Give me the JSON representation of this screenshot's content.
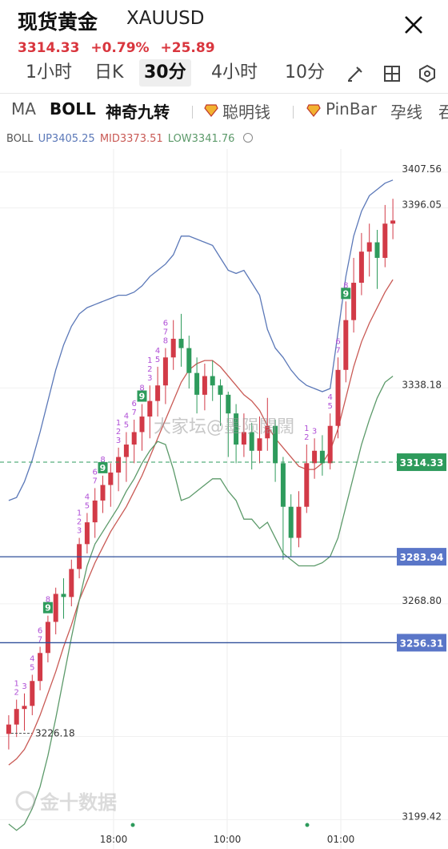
{
  "header": {
    "symbol_name": "现货黄金",
    "symbol_code": "XAUUSD",
    "price": "3314.33",
    "change_pct": "+0.79%",
    "change_abs": "+25.89"
  },
  "tabs": [
    "1小时",
    "日K",
    "30分",
    "4小时",
    "10分"
  ],
  "active_tab": "30分",
  "indicators": [
    "MA",
    "BOLL",
    "神奇九转",
    "聪明钱",
    "PinBar",
    "孕线",
    "吞"
  ],
  "boll_legend": {
    "prefix": "BOLL",
    "up": "UP3405.25",
    "mid": "MID3373.51",
    "low": "LOW3341.76",
    "up_color": "#5b78b8",
    "mid_color": "#c95a55",
    "low_color": "#5c9a6a"
  },
  "watermark": "大家坛@墨陨闊闊",
  "brand": "金十数据",
  "colors": {
    "up": "#d23a47",
    "down": "#2e9b5c",
    "nine_color": "#b04fd6",
    "current_tag": "#2e9b5c",
    "level_tag": "#5a76c8",
    "level_line": "#2f4f9a"
  },
  "chart_data": {
    "type": "candlestick",
    "y_range": [
      3190,
      3415
    ],
    "price_labels": [
      "3407.56",
      "3396.05",
      "3338.18",
      "3268.80",
      "3226.18",
      "3199.42"
    ],
    "current_price": "3314.33",
    "level_lines": [
      "3283.94",
      "3256.31"
    ],
    "x_labels": [
      "18:00",
      "10:00",
      "01:00"
    ],
    "series": [
      {
        "name": "UP",
        "values": [
          3302,
          3303,
          3308,
          3315,
          3324,
          3334,
          3344,
          3352,
          3358,
          3362,
          3364,
          3365,
          3366,
          3367,
          3368,
          3368,
          3369,
          3371,
          3374,
          3376,
          3378,
          3381,
          3387,
          3387,
          3386,
          3385,
          3384,
          3380,
          3376,
          3375,
          3376,
          3372,
          3368,
          3357,
          3351,
          3348,
          3344,
          3341,
          3339,
          3338,
          3337,
          3338,
          3356,
          3374,
          3387,
          3395,
          3400,
          3402,
          3404,
          3405
        ]
      },
      {
        "name": "MID",
        "values": [
          3217,
          3219,
          3222,
          3227,
          3233,
          3240,
          3247,
          3255,
          3262,
          3270,
          3276,
          3282,
          3287,
          3292,
          3296,
          3300,
          3305,
          3310,
          3316,
          3322,
          3328,
          3334,
          3340,
          3344,
          3346,
          3347,
          3347,
          3345,
          3342,
          3339,
          3336,
          3334,
          3331,
          3326,
          3322,
          3319,
          3316,
          3313,
          3312,
          3312,
          3314,
          3318,
          3325,
          3335,
          3345,
          3353,
          3359,
          3364,
          3369,
          3373
        ]
      },
      {
        "name": "LOW",
        "values": [
          3198,
          3196,
          3198,
          3203,
          3210,
          3220,
          3232,
          3245,
          3258,
          3270,
          3281,
          3288,
          3292,
          3296,
          3300,
          3305,
          3309,
          3314,
          3318,
          3321,
          3320,
          3312,
          3302,
          3303,
          3305,
          3307,
          3309,
          3309,
          3305,
          3302,
          3296,
          3296,
          3293,
          3295,
          3290,
          3285,
          3283,
          3281,
          3281,
          3281,
          3282,
          3284,
          3290,
          3300,
          3310,
          3320,
          3328,
          3335,
          3340,
          3342
        ]
      }
    ],
    "candles": [
      [
        3227,
        3230,
        3222,
        3233
      ],
      [
        3230,
        3235,
        3226,
        3238
      ],
      [
        3235,
        3236,
        3228,
        3240
      ],
      [
        3236,
        3244,
        3233,
        3246
      ],
      [
        3244,
        3253,
        3241,
        3255
      ],
      [
        3253,
        3263,
        3250,
        3265
      ],
      [
        3263,
        3272,
        3259,
        3274
      ],
      [
        3272,
        3271,
        3264,
        3277
      ],
      [
        3271,
        3280,
        3268,
        3283
      ],
      [
        3280,
        3288,
        3277,
        3290
      ],
      [
        3288,
        3295,
        3285,
        3298
      ],
      [
        3295,
        3302,
        3290,
        3306
      ],
      [
        3302,
        3307,
        3298,
        3310
      ],
      [
        3307,
        3311,
        3300,
        3314
      ],
      [
        3311,
        3316,
        3305,
        3319
      ],
      [
        3316,
        3320,
        3308,
        3324
      ],
      [
        3320,
        3324,
        3314,
        3328
      ],
      [
        3324,
        3329,
        3318,
        3333
      ],
      [
        3329,
        3334,
        3322,
        3339
      ],
      [
        3334,
        3339,
        3329,
        3345
      ],
      [
        3339,
        3348,
        3333,
        3351
      ],
      [
        3348,
        3354,
        3344,
        3360
      ],
      [
        3354,
        3351,
        3345,
        3362
      ],
      [
        3351,
        3343,
        3338,
        3355
      ],
      [
        3343,
        3336,
        3330,
        3348
      ],
      [
        3336,
        3342,
        3331,
        3346
      ],
      [
        3342,
        3339,
        3334,
        3347
      ],
      [
        3339,
        3336,
        3326,
        3341
      ],
      [
        3336,
        3330,
        3316,
        3337
      ],
      [
        3330,
        3320,
        3314,
        3333
      ],
      [
        3320,
        3324,
        3316,
        3330
      ],
      [
        3324,
        3318,
        3312,
        3327
      ],
      [
        3318,
        3322,
        3314,
        3329
      ],
      [
        3322,
        3326,
        3318,
        3335
      ],
      [
        3326,
        3314,
        3308,
        3328
      ],
      [
        3314,
        3300,
        3283,
        3316
      ],
      [
        3300,
        3290,
        3284,
        3304
      ],
      [
        3290,
        3300,
        3287,
        3305
      ],
      [
        3300,
        3314,
        3298,
        3320
      ],
      [
        3314,
        3318,
        3309,
        3322
      ],
      [
        3318,
        3314,
        3310,
        3323
      ],
      [
        3314,
        3326,
        3312,
        3330
      ],
      [
        3326,
        3344,
        3322,
        3348
      ],
      [
        3344,
        3360,
        3340,
        3366
      ],
      [
        3360,
        3372,
        3356,
        3380
      ],
      [
        3372,
        3382,
        3368,
        3388
      ],
      [
        3382,
        3385,
        3374,
        3391
      ],
      [
        3385,
        3380,
        3370,
        3389
      ],
      [
        3380,
        3391,
        3377,
        3397
      ],
      [
        3391,
        3392,
        3386,
        3399
      ]
    ],
    "nine_markers": [
      {
        "i": 1,
        "labels": [
          "1",
          "2"
        ]
      },
      {
        "i": 2,
        "labels": [
          "3"
        ]
      },
      {
        "i": 3,
        "labels": [
          "4",
          "5"
        ]
      },
      {
        "i": 4,
        "labels": [
          "6",
          "7"
        ]
      },
      {
        "i": 5,
        "labels": [
          "8",
          "9"
        ]
      },
      {
        "i": 9,
        "labels": [
          "1",
          "2",
          "3"
        ]
      },
      {
        "i": 10,
        "labels": [
          "4",
          "5"
        ]
      },
      {
        "i": 11,
        "labels": [
          "6",
          "7"
        ]
      },
      {
        "i": 12,
        "labels": [
          "8",
          "9"
        ]
      },
      {
        "i": 14,
        "labels": [
          "1",
          "2",
          "3"
        ]
      },
      {
        "i": 15,
        "labels": [
          "4",
          "5"
        ]
      },
      {
        "i": 16,
        "labels": [
          "6",
          "7"
        ]
      },
      {
        "i": 17,
        "labels": [
          "8",
          "9"
        ]
      },
      {
        "i": 18,
        "labels": [
          "1",
          "2",
          "3"
        ]
      },
      {
        "i": 19,
        "labels": [
          "4",
          "5"
        ]
      },
      {
        "i": 20,
        "labels": [
          "6",
          "7",
          "8"
        ]
      },
      {
        "i": 38,
        "labels": [
          "1",
          "2"
        ]
      },
      {
        "i": 39,
        "labels": [
          "3"
        ]
      },
      {
        "i": 41,
        "labels": [
          "4",
          "5"
        ]
      },
      {
        "i": 42,
        "labels": [
          "6",
          "7"
        ]
      },
      {
        "i": 43,
        "labels": [
          "8",
          "9"
        ]
      }
    ]
  }
}
